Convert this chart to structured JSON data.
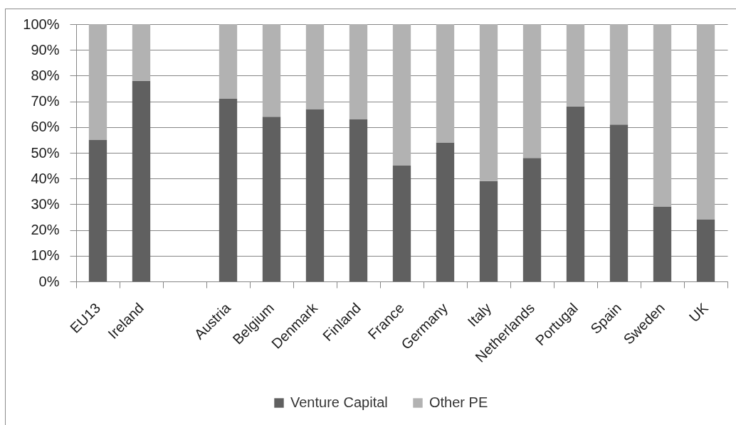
{
  "chart_data": {
    "type": "bar",
    "stacked": true,
    "categories": [
      "EU13",
      "Ireland",
      null,
      "Austria",
      "Belgium",
      "Denmark",
      "Finland",
      "France",
      "Germany",
      "Italy",
      "Netherlands",
      "Portugal",
      "Spain",
      "Sweden",
      "UK"
    ],
    "series": [
      {
        "name": "Venture Capital",
        "color": "#606060",
        "values": [
          55,
          78,
          null,
          71,
          64,
          67,
          63,
          45,
          54,
          39,
          48,
          68,
          61,
          29,
          24
        ]
      },
      {
        "name": "Other PE",
        "color": "#b2b2b2",
        "values": [
          45,
          22,
          null,
          29,
          36,
          33,
          37,
          55,
          46,
          61,
          52,
          32,
          39,
          71,
          76
        ]
      }
    ],
    "ylim": [
      0,
      100
    ],
    "yticks": [
      {
        "value": 0,
        "label": "0%"
      },
      {
        "value": 10,
        "label": "10%"
      },
      {
        "value": 20,
        "label": "20%"
      },
      {
        "value": 30,
        "label": "30%"
      },
      {
        "value": 40,
        "label": "40%"
      },
      {
        "value": 50,
        "label": "50%"
      },
      {
        "value": 60,
        "label": "60%"
      },
      {
        "value": 70,
        "label": "70%"
      },
      {
        "value": 80,
        "label": "80%"
      },
      {
        "value": 90,
        "label": "90%"
      },
      {
        "value": 100,
        "label": "100%"
      }
    ],
    "grid": "y",
    "legend": "bottom"
  }
}
